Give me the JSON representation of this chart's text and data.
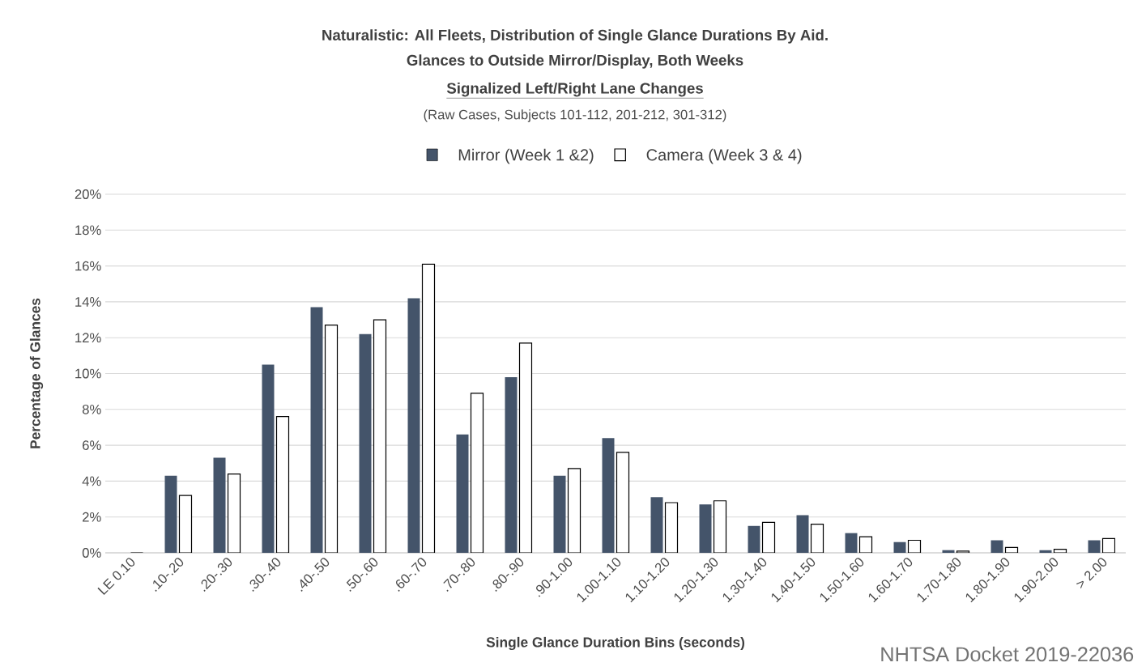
{
  "chart_data": {
    "type": "bar",
    "title": "Naturalistic: All Fleets, Distribution of Single Glance Durations By Aid.",
    "subtitle": "Glances to Outside Mirror/Display, Both Weeks",
    "annotations": [
      "Signalized Left/Right Lane Changes",
      "(Raw Cases, Subjects 101-112, 201-212, 301-312)",
      "NHTSA Docket 2019-22036"
    ],
    "xlabel": "Single Glance Duration Bins (seconds)",
    "ylabel": "Percentage of Glances",
    "categories": [
      "LE 0.10",
      ".10-.20",
      ".20-.30",
      ".30-.40",
      ".40-.50",
      ".50-.60",
      ".60-.70",
      ".70-.80",
      ".80-.90",
      ".90-1.00",
      "1.00-1.10",
      "1.10-1.20",
      "1.20-1.30",
      "1.30-1.40",
      "1.40-1.50",
      "1.50-1.60",
      "1.60-1.70",
      "1.70-1.80",
      "1.80-1.90",
      "1.90-2.00",
      "> 2.00"
    ],
    "series": [
      {
        "name": "Mirror (Week 1 &2)",
        "color": "#44546a",
        "values": [
          0,
          4.3,
          5.3,
          10.5,
          13.7,
          12.2,
          14.2,
          6.6,
          9.8,
          4.3,
          6.4,
          3.1,
          2.7,
          1.5,
          2.1,
          1.1,
          0.6,
          0.15,
          0.7,
          0.15,
          0.7
        ]
      },
      {
        "name": "Camera (Week 3 & 4)",
        "color": "#000000",
        "values": [
          0,
          3.2,
          4.4,
          7.6,
          12.7,
          13.0,
          16.1,
          8.9,
          11.7,
          4.7,
          5.6,
          2.8,
          2.9,
          1.7,
          1.6,
          0.9,
          0.7,
          0.1,
          0.3,
          0.2,
          0.8
        ]
      }
    ],
    "ylim": [
      0,
      20
    ],
    "yticks": [
      {
        "value": 0,
        "label": "0%"
      },
      {
        "value": 2,
        "label": "2%"
      },
      {
        "value": 4,
        "label": "4%"
      },
      {
        "value": 6,
        "label": "6%"
      },
      {
        "value": 8,
        "label": "8%"
      },
      {
        "value": 10,
        "label": "10%"
      },
      {
        "value": 12,
        "label": "12%"
      },
      {
        "value": 14,
        "label": "14%"
      },
      {
        "value": 16,
        "label": "16%"
      },
      {
        "value": 18,
        "label": "18%"
      },
      {
        "value": 20,
        "label": "20%"
      }
    ],
    "grid": "y",
    "legend": "top"
  }
}
